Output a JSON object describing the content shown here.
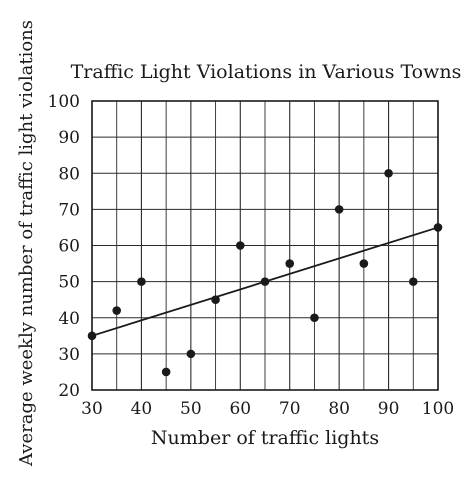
{
  "chart_data": {
    "type": "scatter",
    "title": "Traffic Light Violations in Various Towns",
    "xlabel": "Number of traffic lights",
    "ylabel": "Average weekly number of traffic light violations",
    "xlim": [
      30,
      100
    ],
    "ylim": [
      20,
      100
    ],
    "x_ticks": [
      30,
      40,
      50,
      60,
      70,
      80,
      90,
      100
    ],
    "y_ticks": [
      20,
      30,
      40,
      50,
      60,
      70,
      80,
      90,
      100
    ],
    "grid": true,
    "points": [
      {
        "x": 30,
        "y": 35
      },
      {
        "x": 35,
        "y": 42
      },
      {
        "x": 40,
        "y": 50
      },
      {
        "x": 45,
        "y": 25
      },
      {
        "x": 50,
        "y": 30
      },
      {
        "x": 55,
        "y": 45
      },
      {
        "x": 60,
        "y": 60
      },
      {
        "x": 65,
        "y": 50
      },
      {
        "x": 70,
        "y": 55
      },
      {
        "x": 75,
        "y": 40
      },
      {
        "x": 80,
        "y": 70
      },
      {
        "x": 85,
        "y": 55
      },
      {
        "x": 90,
        "y": 80
      },
      {
        "x": 95,
        "y": 50
      },
      {
        "x": 100,
        "y": 65
      }
    ],
    "trend_line": [
      {
        "x": 30,
        "y": 35
      },
      {
        "x": 100,
        "y": 65
      }
    ]
  },
  "colors": {
    "ink": "#1a1a1a",
    "grid": "#2a2a2a",
    "background": "#ffffff"
  }
}
